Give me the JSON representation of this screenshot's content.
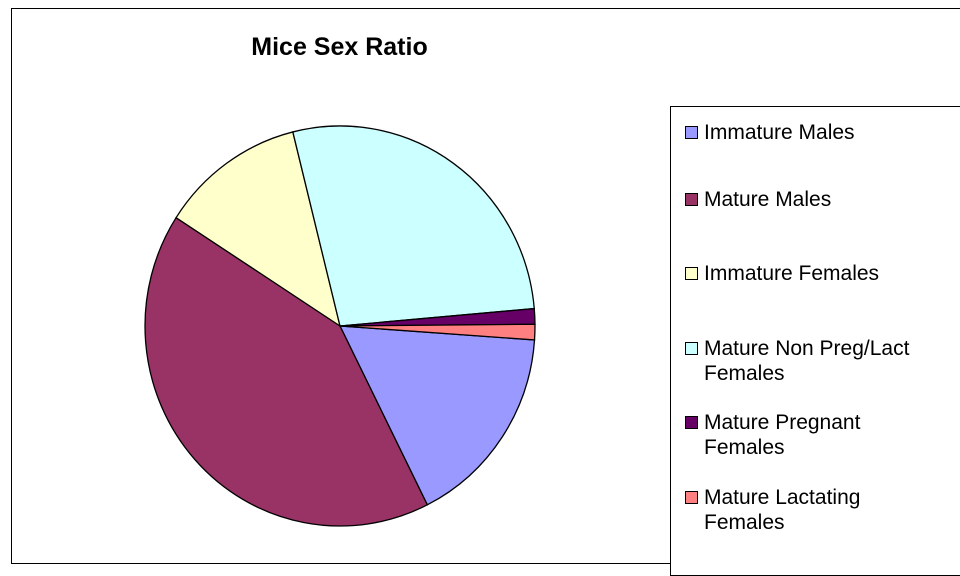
{
  "chart_data": {
    "type": "pie",
    "title": "Mice Sex Ratio",
    "legend_position": "right",
    "slices": [
      {
        "label": "Immature Males",
        "value": 16.5,
        "color": "#9999ff"
      },
      {
        "label": "Mature Males",
        "value": 41.5,
        "color": "#993366"
      },
      {
        "label": "Immature Females",
        "value": 12.0,
        "color": "#ffffcc"
      },
      {
        "label": "Mature Non Preg/Lact Females",
        "value": 27.5,
        "color": "#ccffff"
      },
      {
        "label": "Mature Pregnant Females",
        "value": 1.25,
        "color": "#660066"
      },
      {
        "label": "Mature Lactating Females",
        "value": 1.25,
        "color": "#ff8080"
      }
    ]
  },
  "legend": {
    "items": [
      {
        "line1": "Immature Males",
        "line2": ""
      },
      {
        "line1": "Mature Males",
        "line2": ""
      },
      {
        "line1": "Immature Females",
        "line2": ""
      },
      {
        "line1": "Mature Non Preg/Lact",
        "line2": "Females"
      },
      {
        "line1": "Mature Pregnant",
        "line2": "Females"
      },
      {
        "line1": "Mature Lactating",
        "line2": "Females"
      }
    ]
  }
}
